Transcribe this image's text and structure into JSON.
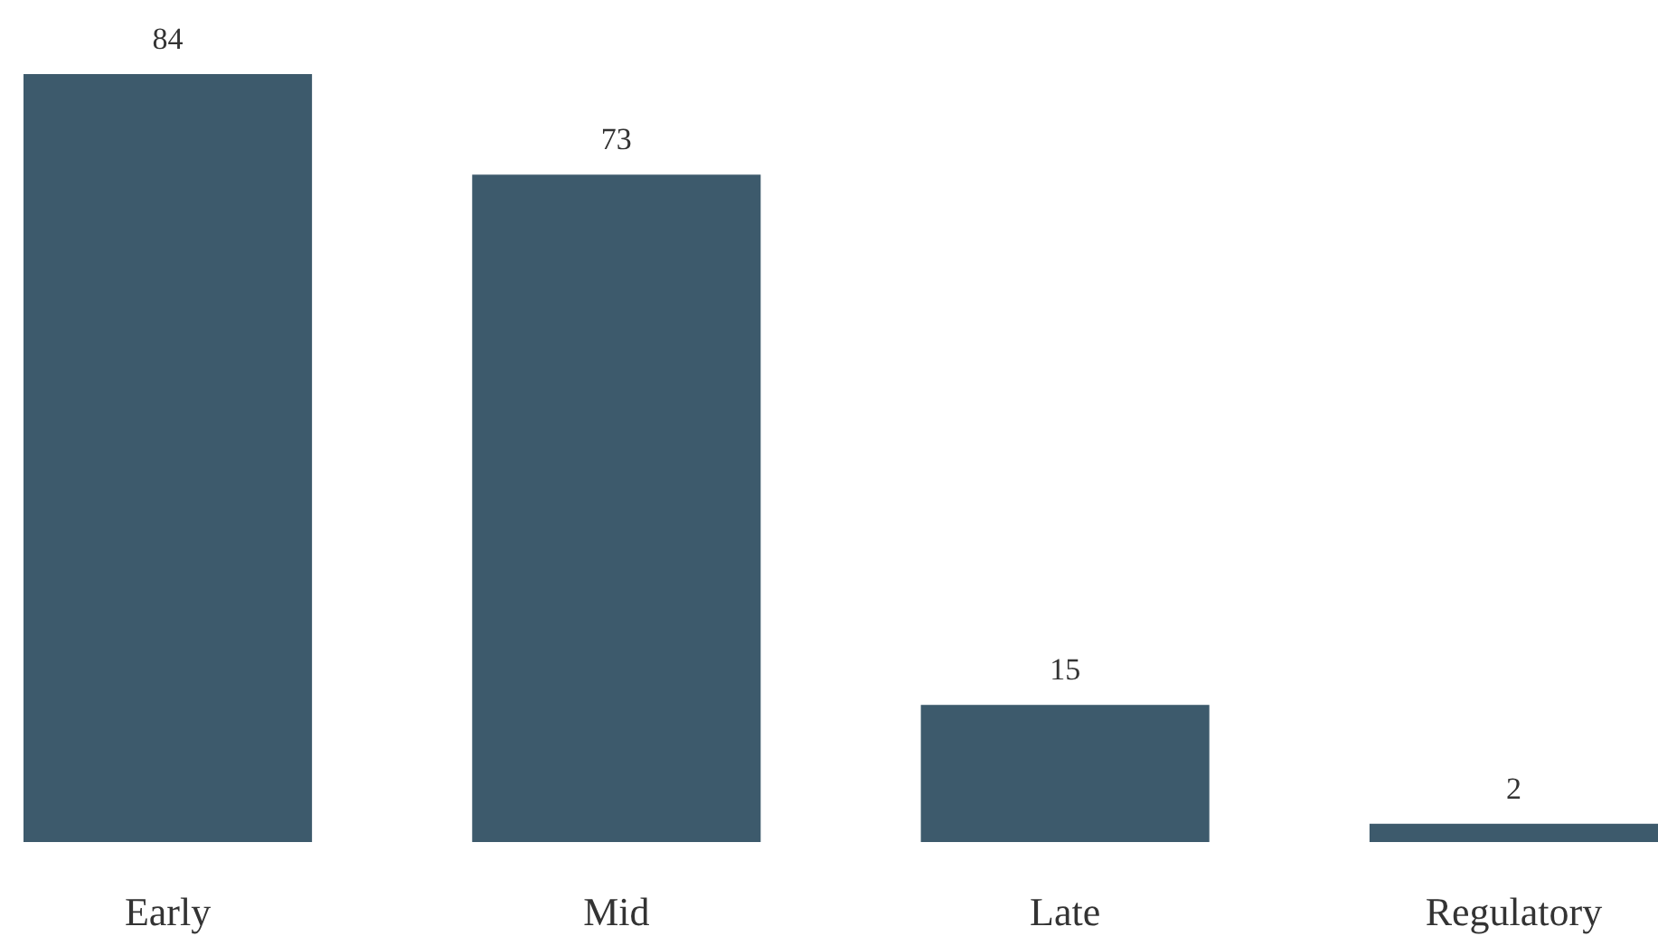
{
  "chart_data": {
    "type": "bar",
    "categories": [
      "Early",
      "Mid",
      "Late",
      "Regulatory"
    ],
    "values": [
      84,
      73,
      15,
      2
    ],
    "color": "#3d5a6c",
    "data_labels": true
  }
}
